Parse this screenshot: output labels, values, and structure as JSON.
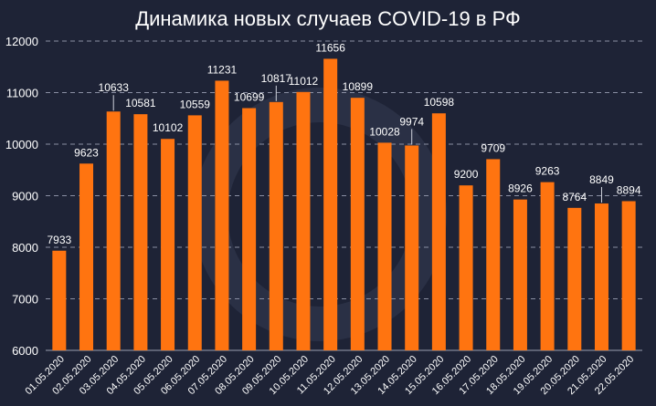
{
  "chart_data": {
    "type": "bar",
    "title": "Динамика новых случаев COVID-19 в РФ",
    "categories": [
      "01.05.2020",
      "02.05.2020",
      "03.05.2020",
      "04.05.2020",
      "05.05.2020",
      "06.05.2020",
      "07.05.2020",
      "08.05.2020",
      "09.05.2020",
      "10.05.2020",
      "11.05.2020",
      "12.05.2020",
      "13.05.2020",
      "14.05.2020",
      "15.05.2020",
      "16.05.2020",
      "17.05.2020",
      "18.05.2020",
      "19.05.2020",
      "20.05.2020",
      "21.05.2020",
      "22.05.2020"
    ],
    "values": [
      7933,
      9623,
      10633,
      10581,
      10102,
      10559,
      11231,
      10699,
      10817,
      11012,
      11656,
      10899,
      10028,
      9974,
      10598,
      9200,
      9709,
      8926,
      9263,
      8764,
      8849,
      8894
    ],
    "ylim": [
      6000,
      12000
    ],
    "yticks": [
      6000,
      7000,
      8000,
      9000,
      10000,
      11000,
      12000
    ],
    "xlabel": "",
    "ylabel": "",
    "grid": true,
    "bar_color": "#ff7410",
    "background_color": "#1e2336"
  }
}
